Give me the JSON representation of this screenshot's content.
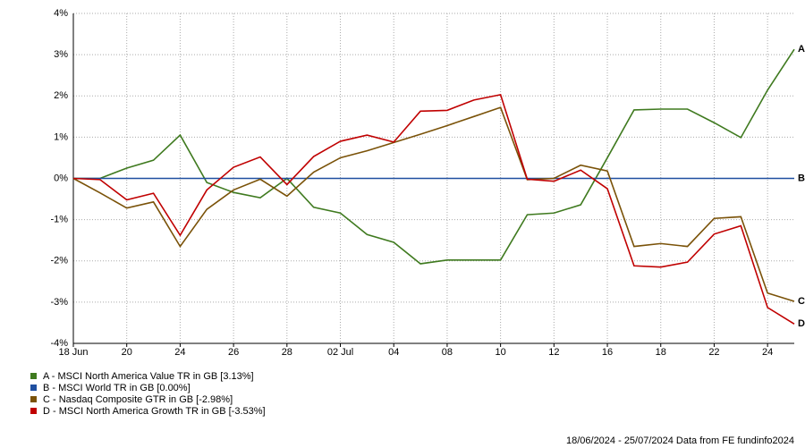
{
  "chart_data": {
    "type": "line",
    "categories": [
      "18 Jun",
      null,
      "20",
      null,
      "24",
      null,
      "26",
      null,
      "28",
      null,
      "02 Jul",
      null,
      "04",
      null,
      "08",
      null,
      "10",
      null,
      "12",
      null,
      "16",
      null,
      "18",
      null,
      "22",
      null,
      "24",
      null
    ],
    "series": [
      {
        "name": "A - MSCI North America Value TR in GB [3.13%]",
        "tag": "A",
        "color": "#3f7a1f",
        "values": [
          0,
          0,
          0.25,
          0.44,
          1.05,
          -0.1,
          -0.34,
          -0.47,
          0,
          -0.7,
          -0.84,
          -1.36,
          -1.55,
          -2.07,
          -1.98,
          -1.98,
          -1.98,
          -0.88,
          -0.84,
          -0.64,
          0.5,
          1.66,
          1.68,
          1.68,
          1.35,
          0.99,
          2.14,
          3.13
        ]
      },
      {
        "name": "B - MSCI World TR in GB [0.00%]",
        "tag": "B",
        "color": "#1f4fa0",
        "values": [
          0,
          0,
          0,
          0,
          0,
          0,
          0,
          0,
          0,
          0,
          0,
          0,
          0,
          0,
          0,
          0,
          0,
          0,
          0,
          0,
          0,
          0,
          0,
          0,
          0,
          0,
          0,
          0
        ]
      },
      {
        "name": "C - Nasdaq Composite GTR in GB [-2.98%]",
        "tag": "C",
        "color": "#7a5208",
        "values": [
          0,
          -0.35,
          -0.72,
          -0.57,
          -1.65,
          -0.75,
          -0.28,
          -0.02,
          -0.43,
          0.15,
          0.5,
          0.67,
          0.87,
          1.07,
          1.28,
          1.5,
          1.72,
          -0.03,
          0,
          0.32,
          0.18,
          -1.65,
          -1.58,
          -1.65,
          -0.97,
          -0.93,
          -2.78,
          -2.98
        ]
      },
      {
        "name": "D - MSCI North America Growth TR in GB [-3.53%]",
        "tag": "D",
        "color": "#c00000",
        "values": [
          0,
          -0.03,
          -0.52,
          -0.36,
          -1.38,
          -0.28,
          0.27,
          0.52,
          -0.15,
          0.53,
          0.9,
          1.05,
          0.88,
          1.63,
          1.65,
          1.9,
          2.03,
          -0.02,
          -0.07,
          0.2,
          -0.25,
          -2.12,
          -2.15,
          -2.03,
          -1.35,
          -1.15,
          -3.13,
          -3.53
        ]
      }
    ],
    "ylim": [
      -4,
      4
    ],
    "yticks": [
      {
        "value": -4,
        "label": "-4%"
      },
      {
        "value": -3,
        "label": "-3%"
      },
      {
        "value": -2,
        "label": "-2%"
      },
      {
        "value": -1,
        "label": "-1%"
      },
      {
        "value": 0,
        "label": "0%"
      },
      {
        "value": 1,
        "label": "1%"
      },
      {
        "value": 2,
        "label": "2%"
      },
      {
        "value": 3,
        "label": "3%"
      },
      {
        "value": 4,
        "label": "4%"
      }
    ],
    "grid": true,
    "footer": "18/06/2024 - 25/07/2024 Data from FE fundinfo2024"
  }
}
